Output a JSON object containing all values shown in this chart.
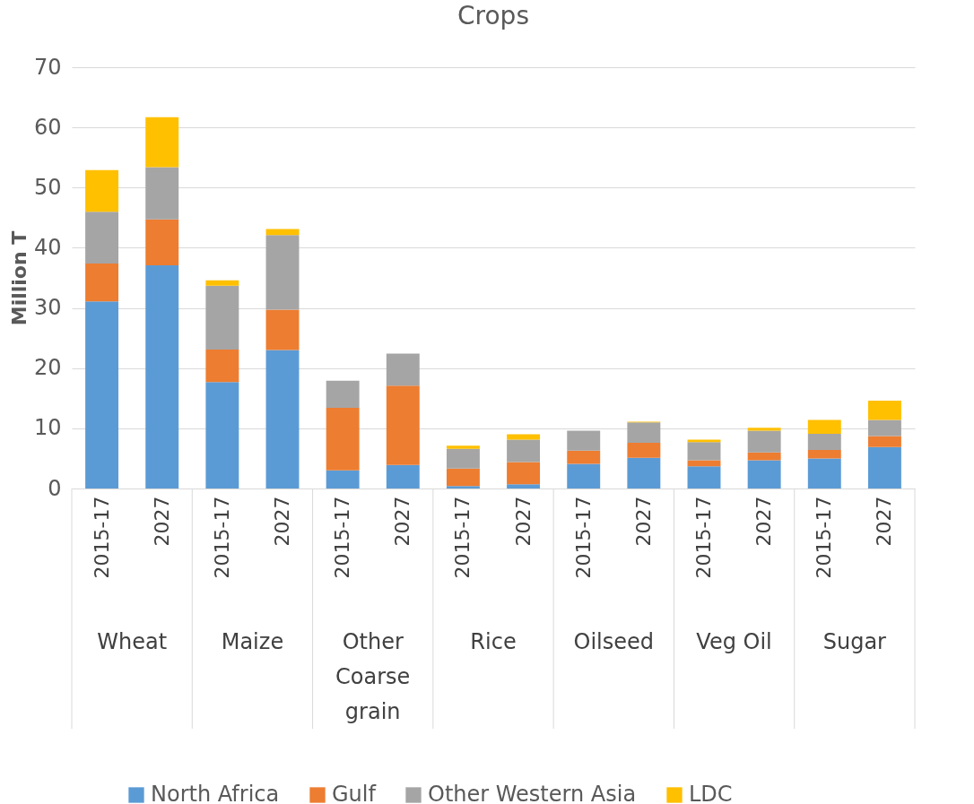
{
  "chart_data": {
    "type": "bar",
    "title": "Crops",
    "ylabel": "Million T",
    "stacked": true,
    "categories": [
      "2015-17",
      "2027",
      "2015-17",
      "2027",
      "2015-17",
      "2027",
      "2015-17",
      "2027",
      "2015-17",
      "2027",
      "2015-17",
      "2027",
      "2015-17",
      "2027"
    ],
    "annotations": [
      "Wheat",
      "Maize",
      "Other\nCoarse\ngrain",
      "Rice",
      "Oilseed",
      "Veg Oil",
      "Sugar"
    ],
    "series": [
      {
        "name": "North Africa",
        "color": "#5b9bd5",
        "values": [
          31.1,
          37.1,
          17.7,
          23.0,
          3.0,
          3.9,
          0.4,
          0.7,
          4.1,
          5.1,
          3.7,
          4.7,
          5.0,
          6.9
        ]
      },
      {
        "name": "Gulf",
        "color": "#ed7d31",
        "values": [
          6.3,
          7.6,
          5.4,
          6.7,
          10.4,
          13.2,
          2.9,
          3.7,
          2.2,
          2.5,
          1.0,
          1.3,
          1.4,
          1.8
        ]
      },
      {
        "name": "Other Western Asia",
        "color": "#a5a5a5",
        "values": [
          8.6,
          8.7,
          10.6,
          12.4,
          4.5,
          5.3,
          3.3,
          3.7,
          3.3,
          3.4,
          3.0,
          3.6,
          2.7,
          2.7
        ]
      },
      {
        "name": "LDC",
        "color": "#ffc000",
        "values": [
          6.9,
          8.3,
          0.9,
          1.0,
          0,
          0,
          0.5,
          0.9,
          0,
          0.1,
          0.4,
          0.5,
          2.3,
          3.2
        ]
      }
    ],
    "ylim": [
      0,
      70
    ],
    "yticks": [
      0,
      10,
      20,
      30,
      40,
      50,
      60,
      70
    ],
    "grid": "y",
    "legend": "bottom"
  }
}
